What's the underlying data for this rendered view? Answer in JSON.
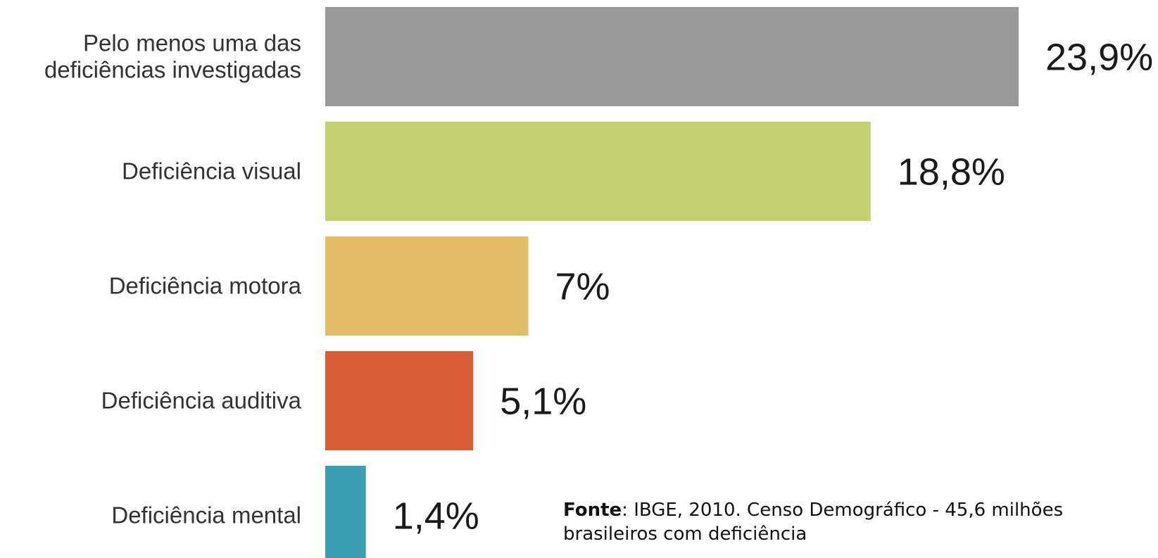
{
  "chart_data": {
    "type": "bar",
    "orientation": "horizontal",
    "categories": [
      [
        "Pelo menos uma das",
        "deficiências investigadas"
      ],
      [
        "Deficiência visual"
      ],
      [
        "Deficiência motora"
      ],
      [
        "Deficiência auditiva"
      ],
      [
        "Deficiência mental"
      ]
    ],
    "values": [
      23.9,
      18.8,
      7,
      5.1,
      1.4
    ],
    "value_labels": [
      "23,9%",
      "18,8%",
      "7%",
      "5,1%",
      "1,4%"
    ],
    "colors": [
      "#9a9a9a",
      "#c5d072",
      "#e3bd66",
      "#d85c35",
      "#3a9fb3"
    ],
    "xlim": [
      0,
      23.9
    ],
    "grid": false,
    "legend": "none"
  },
  "source": {
    "label": "Fonte",
    "separator": ": ",
    "text": "IBGE, 2010. Censo Demográfico - 45,6 milhões",
    "text_line2": "brasileiros com deficiência"
  }
}
